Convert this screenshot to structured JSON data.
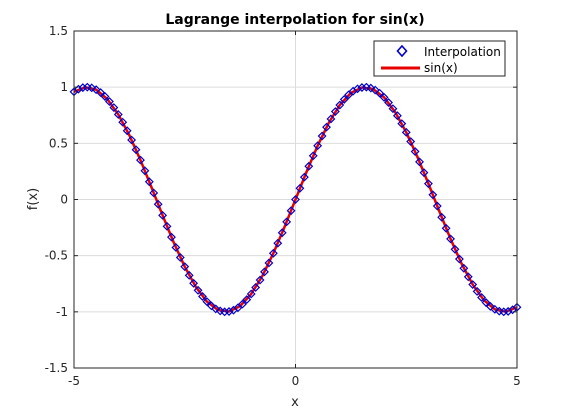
{
  "chart_data": {
    "type": "line",
    "title": "Lagrange interpolation for sin(x)",
    "xlabel": "x",
    "ylabel": "f(x)",
    "xlim": [
      -5,
      5
    ],
    "ylim": [
      -1.5,
      1.5
    ],
    "xticks": [
      "-5",
      "0",
      "5"
    ],
    "yticks": [
      "1.5",
      "1",
      "0.5",
      "0",
      "-0.5",
      "-1",
      "-1.5"
    ],
    "xtick_values": [
      -5,
      0,
      5
    ],
    "ytick_values": [
      1.5,
      1,
      0.5,
      0,
      -0.5,
      -1,
      -1.5
    ],
    "grid": true,
    "legend_position": "top-right",
    "series": [
      {
        "name": "Interpolation",
        "style": "markers",
        "marker": "diamond",
        "color": "#0000cc",
        "x": [
          -5,
          -4.9,
          -4.8,
          -4.7,
          -4.6,
          -4.5,
          -4.4,
          -4.3,
          -4.2,
          -4.1,
          -4,
          -3.9,
          -3.8,
          -3.7,
          -3.6,
          -3.5,
          -3.4,
          -3.3,
          -3.2,
          -3.1,
          -3,
          -2.9,
          -2.8,
          -2.7,
          -2.6,
          -2.5,
          -2.4,
          -2.3,
          -2.2,
          -2.1,
          -2,
          -1.9,
          -1.8,
          -1.7,
          -1.6,
          -1.5,
          -1.4,
          -1.3,
          -1.2,
          -1.1,
          -1,
          -0.9,
          -0.8,
          -0.7,
          -0.6,
          -0.5,
          -0.4,
          -0.3,
          -0.2,
          -0.1,
          0,
          0.1,
          0.2,
          0.3,
          0.4,
          0.5,
          0.6,
          0.7,
          0.8,
          0.9,
          1,
          1.1,
          1.2,
          1.3,
          1.4,
          1.5,
          1.6,
          1.7,
          1.8,
          1.9,
          2,
          2.1,
          2.2,
          2.3,
          2.4,
          2.5,
          2.6,
          2.7,
          2.8,
          2.9,
          3,
          3.1,
          3.2,
          3.3,
          3.4,
          3.5,
          3.6,
          3.7,
          3.8,
          3.9,
          4,
          4.1,
          4.2,
          4.3,
          4.4,
          4.5,
          4.6,
          4.7,
          4.8,
          4.9,
          5
        ],
        "y": [
          0.959,
          0.982,
          0.996,
          1.0,
          0.994,
          0.978,
          0.952,
          0.917,
          0.872,
          0.818,
          0.757,
          0.688,
          0.612,
          0.53,
          0.443,
          0.351,
          0.256,
          0.158,
          0.058,
          -0.042,
          -0.141,
          -0.239,
          -0.335,
          -0.427,
          -0.516,
          -0.598,
          -0.675,
          -0.746,
          -0.808,
          -0.863,
          -0.909,
          -0.946,
          -0.974,
          -0.992,
          -1.0,
          -0.997,
          -0.985,
          -0.964,
          -0.932,
          -0.891,
          -0.841,
          -0.783,
          -0.717,
          -0.644,
          -0.565,
          -0.479,
          -0.389,
          -0.296,
          -0.199,
          -0.1,
          0.0,
          0.1,
          0.199,
          0.296,
          0.389,
          0.479,
          0.565,
          0.644,
          0.717,
          0.783,
          0.841,
          0.891,
          0.932,
          0.964,
          0.985,
          0.997,
          1.0,
          0.992,
          0.974,
          0.946,
          0.909,
          0.863,
          0.808,
          0.746,
          0.675,
          0.598,
          0.516,
          0.427,
          0.335,
          0.239,
          0.141,
          0.042,
          -0.058,
          -0.158,
          -0.256,
          -0.351,
          -0.443,
          -0.53,
          -0.612,
          -0.688,
          -0.757,
          -0.818,
          -0.872,
          -0.917,
          -0.952,
          -0.978,
          -0.994,
          -1.0,
          -0.996,
          -0.982,
          -0.959
        ]
      },
      {
        "name": "sin(x)",
        "style": "line",
        "color": "#e60000",
        "x": [
          -5,
          -4.75,
          -4.5,
          -4.25,
          -4,
          -3.75,
          -3.5,
          -3.25,
          -3,
          -2.75,
          -2.5,
          -2.25,
          -2,
          -1.75,
          -1.5,
          -1.25,
          -1,
          -0.75,
          -0.5,
          -0.25,
          0,
          0.25,
          0.5,
          0.75,
          1,
          1.25,
          1.5,
          1.75,
          2,
          2.25,
          2.5,
          2.75,
          3,
          3.25,
          3.5,
          3.75,
          4,
          4.25,
          4.5,
          4.75,
          5
        ],
        "y": [
          0.959,
          0.999,
          0.978,
          0.895,
          0.757,
          0.572,
          0.351,
          0.108,
          -0.141,
          -0.382,
          -0.598,
          -0.778,
          -0.909,
          -0.984,
          -0.997,
          -0.949,
          -0.841,
          -0.682,
          -0.479,
          -0.247,
          0.0,
          0.247,
          0.479,
          0.682,
          0.841,
          0.949,
          0.997,
          0.984,
          0.909,
          0.778,
          0.598,
          0.382,
          0.141,
          -0.108,
          -0.351,
          -0.572,
          -0.757,
          -0.895,
          -0.978,
          -0.999,
          -0.959
        ]
      }
    ]
  }
}
